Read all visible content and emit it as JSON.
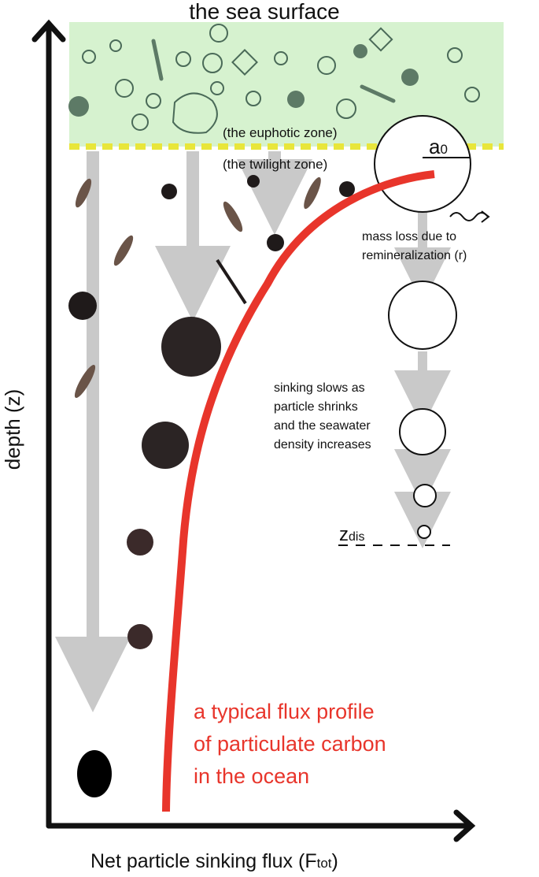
{
  "labels": {
    "surface": "the sea surface",
    "euphotic": "(the euphotic zone)",
    "twilight": "(the twilight zone)",
    "a0_main": "a",
    "a0_sub": "0",
    "mass_loss_1": "mass loss due to",
    "mass_loss_2": "remineralization (r)",
    "sinking_1": "sinking slows as",
    "sinking_2": "particle shrinks",
    "sinking_3": "and the seawater",
    "sinking_4": "density increases",
    "zdis_main": "z",
    "zdis_sub": "dis",
    "profile_1": "a typical flux profile",
    "profile_2": "of particulate carbon",
    "profile_3": "in the ocean",
    "y_axis": "depth (z)",
    "x_axis_main": "Net particle sinking flux (F",
    "x_axis_sub": "tot",
    "x_axis_end": ")"
  },
  "colors": {
    "surface_zone": "#d6f2cf",
    "boundary": "#e8e63a",
    "flux_profile": "#e8352b",
    "arrows": "#c9c9c9",
    "axes": "#111111"
  }
}
